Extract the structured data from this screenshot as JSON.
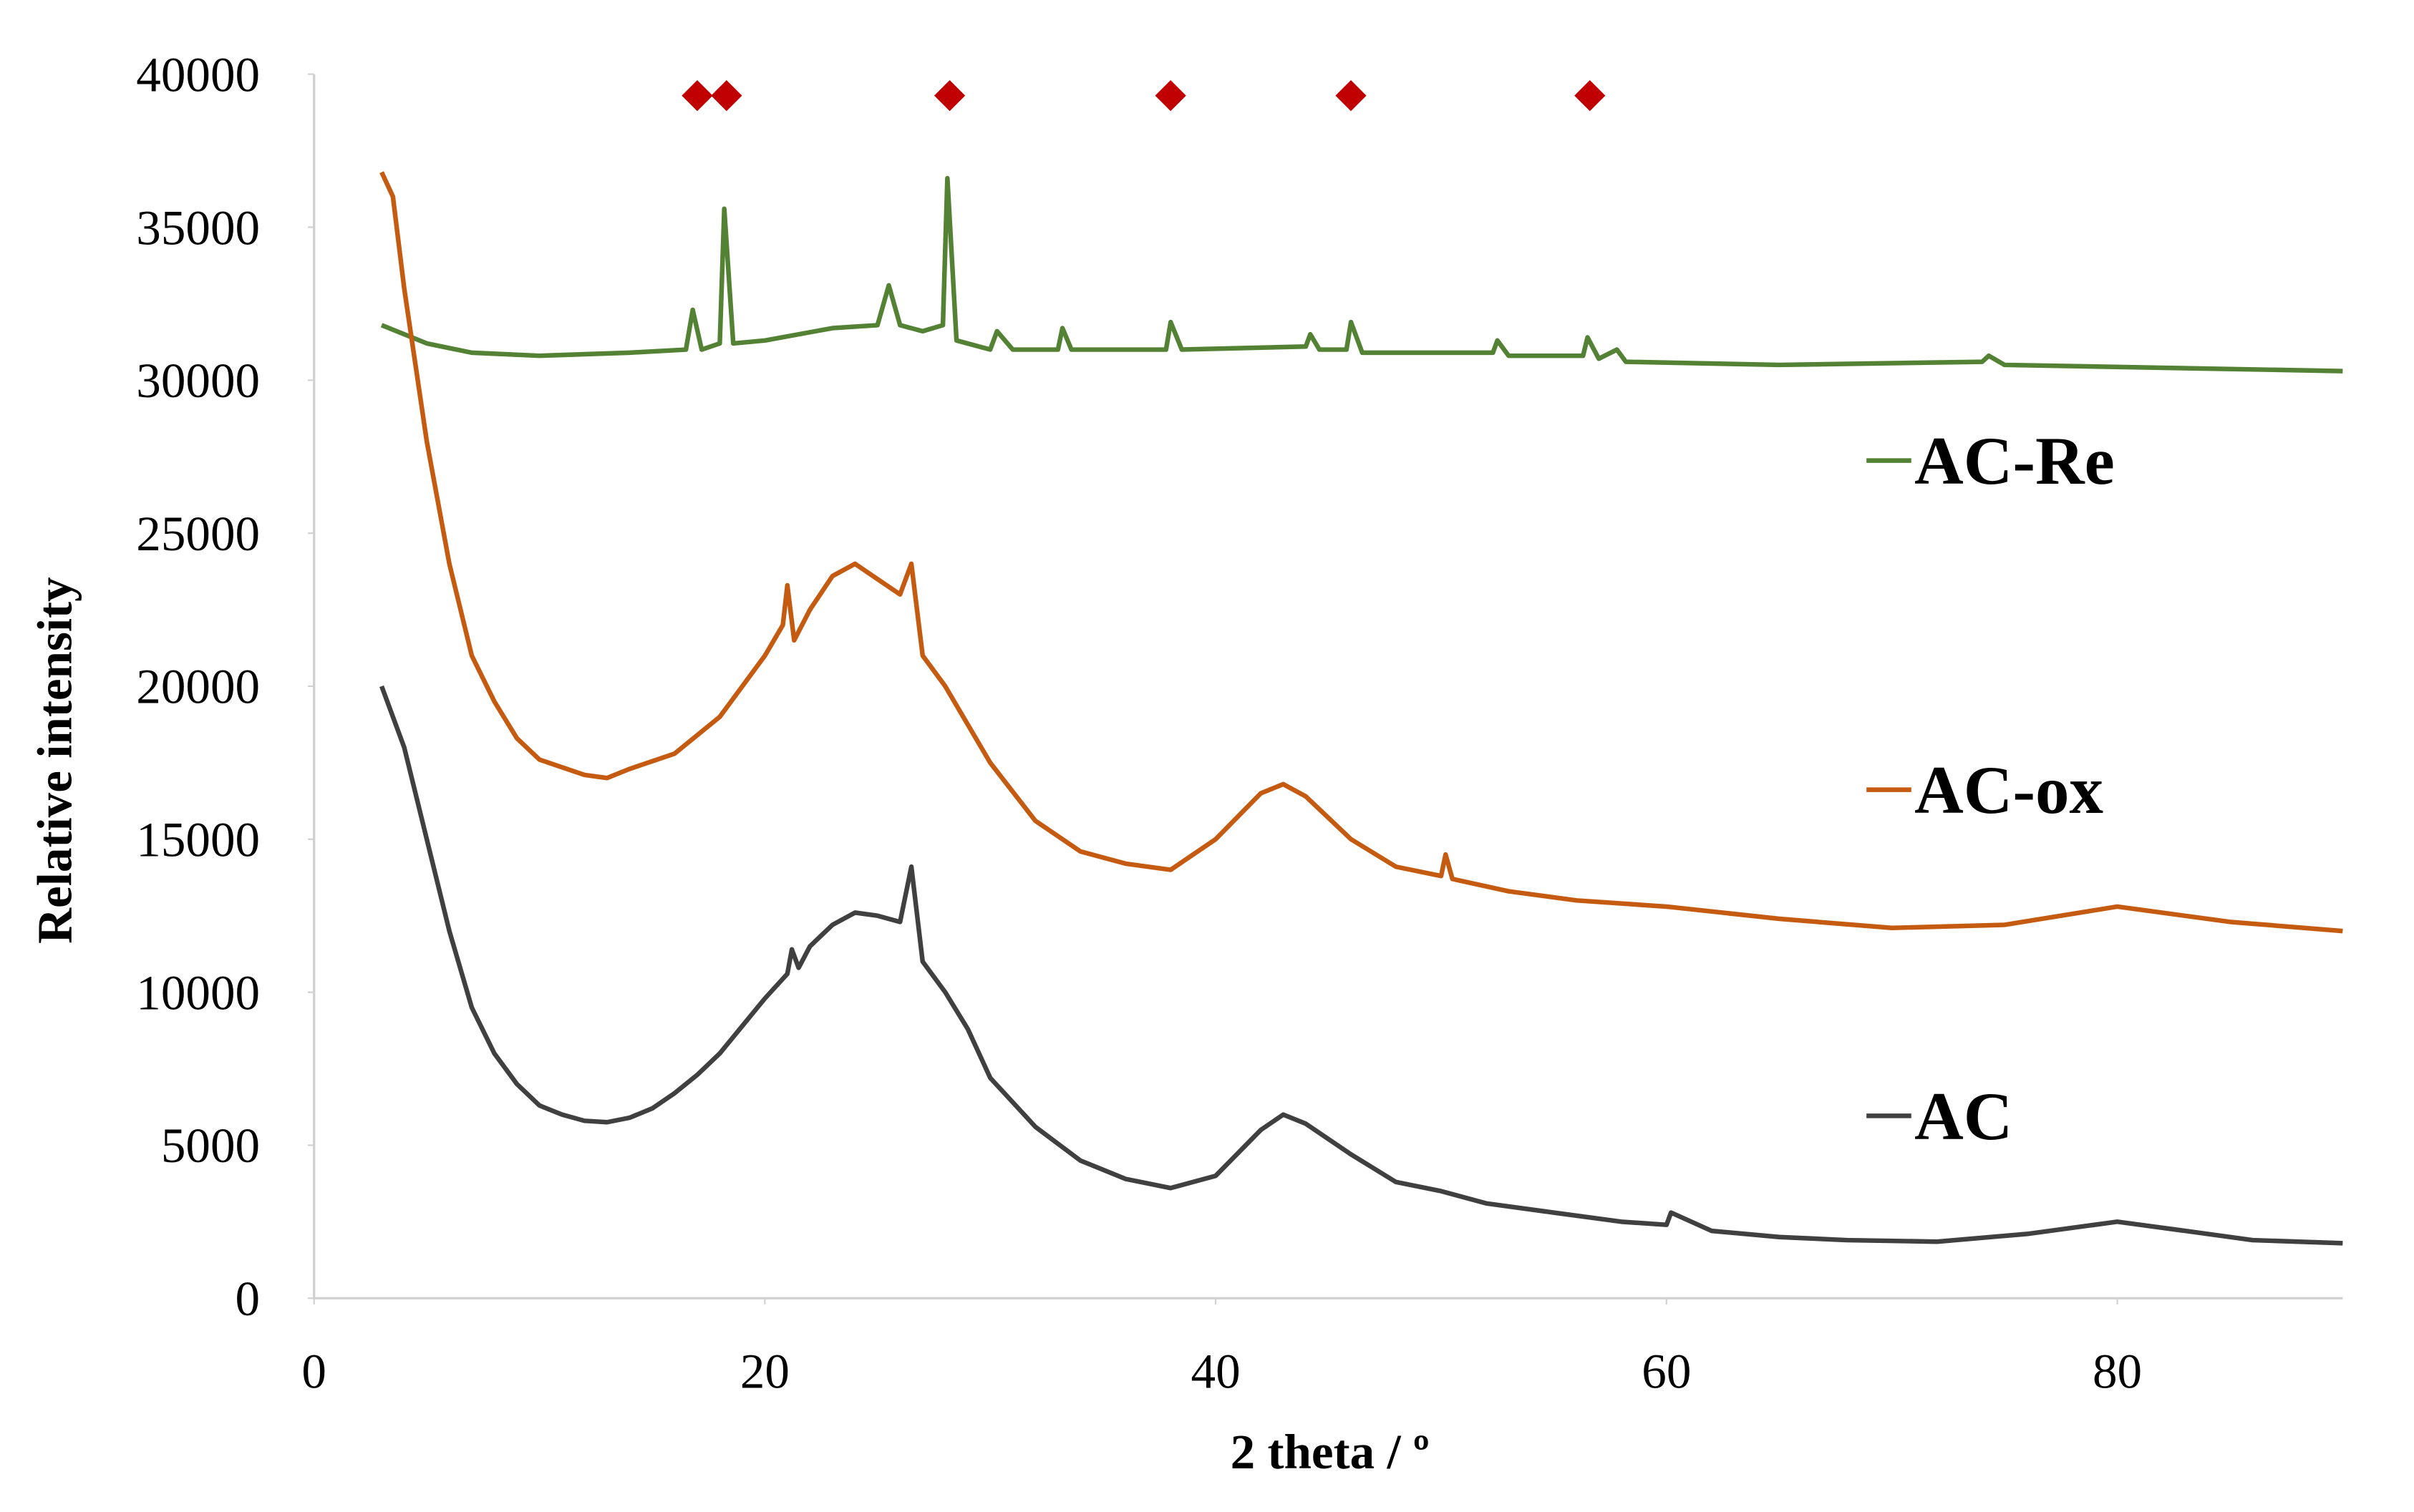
{
  "chart_data": {
    "type": "line",
    "x_label": "2 theta / º",
    "y_label": "Relative intensity",
    "xlim": [
      0,
      90
    ],
    "xticks": [
      0,
      20,
      40,
      60,
      80
    ],
    "ylim": [
      0,
      40000
    ],
    "yticks": [
      0,
      5000,
      10000,
      15000,
      20000,
      25000,
      30000,
      35000,
      40000
    ],
    "series": [
      {
        "name": "AC-Re",
        "color": "#548235",
        "x": [
          3,
          5,
          7,
          10,
          14,
          16.5,
          16.8,
          17.2,
          18,
          18.2,
          18.6,
          20,
          23,
          25,
          25.5,
          26,
          27,
          27.9,
          28.1,
          28.5,
          30,
          30.3,
          31,
          33,
          33.2,
          33.6,
          37.8,
          38,
          38.5,
          44,
          44.2,
          44.6,
          45.8,
          46,
          46.5,
          52.3,
          52.5,
          53,
          56.3,
          56.5,
          57,
          57.8,
          58.2,
          65,
          74,
          74.3,
          75,
          90
        ],
        "values": [
          31800,
          31200,
          30900,
          30800,
          30900,
          31000,
          32300,
          31000,
          31200,
          35600,
          31200,
          31300,
          31700,
          31800,
          33100,
          31800,
          31600,
          31800,
          36600,
          31300,
          31000,
          31600,
          31000,
          31000,
          31700,
          31000,
          31000,
          31900,
          31000,
          31100,
          31500,
          31000,
          31000,
          31900,
          30900,
          30900,
          31300,
          30800,
          30800,
          31400,
          30700,
          31000,
          30600,
          30500,
          30600,
          30800,
          30500,
          30300
        ]
      },
      {
        "name": "AC-ox",
        "color": "#c55a11",
        "x": [
          3,
          3.5,
          4,
          5,
          6,
          7,
          8,
          9,
          10,
          12,
          13,
          14,
          16,
          18,
          20,
          20.8,
          21,
          21.3,
          22,
          23,
          24,
          25,
          26,
          26.5,
          27,
          28,
          30,
          32,
          34,
          36,
          38,
          40,
          42,
          43,
          44,
          46,
          48,
          50,
          50.2,
          50.5,
          53,
          56,
          60,
          65,
          70,
          75,
          80,
          85,
          90
        ],
        "values": [
          36800,
          36000,
          33000,
          28000,
          24000,
          21000,
          19500,
          18300,
          17600,
          17100,
          17000,
          17300,
          17800,
          19000,
          21000,
          22000,
          23300,
          21500,
          22500,
          23600,
          24000,
          23500,
          23000,
          24000,
          21000,
          20000,
          17500,
          15600,
          14600,
          14200,
          14000,
          15000,
          16500,
          16800,
          16400,
          15000,
          14100,
          13800,
          14500,
          13700,
          13300,
          13000,
          12800,
          12400,
          12100,
          12200,
          12800,
          12300,
          12000
        ]
      },
      {
        "name": "AC",
        "color": "#404040",
        "x": [
          3,
          4,
          5,
          6,
          7,
          8,
          9,
          10,
          11,
          12,
          13,
          14,
          15,
          16,
          17,
          18,
          19,
          20,
          21,
          21.2,
          21.5,
          22,
          23,
          24,
          25,
          26,
          26.5,
          27,
          28,
          29,
          30,
          32,
          34,
          36,
          38,
          40,
          42,
          43,
          44,
          46,
          48,
          50,
          52,
          55,
          58,
          60,
          60.2,
          62,
          65,
          68,
          72,
          76,
          80,
          83,
          86,
          90
        ],
        "values": [
          20000,
          18000,
          15000,
          12000,
          9500,
          8000,
          7000,
          6300,
          6000,
          5800,
          5750,
          5900,
          6200,
          6700,
          7300,
          8000,
          8900,
          9800,
          10600,
          11400,
          10800,
          11500,
          12200,
          12600,
          12500,
          12300,
          14100,
          11000,
          10000,
          8800,
          7200,
          5600,
          4500,
          3900,
          3600,
          4000,
          5500,
          6000,
          5700,
          4700,
          3800,
          3500,
          3100,
          2800,
          2500,
          2400,
          2800,
          2200,
          2000,
          1900,
          1850,
          2100,
          2500,
          2200,
          1900,
          1800
        ]
      }
    ],
    "markers": {
      "color": "#c00000",
      "x": [
        17,
        18.3,
        28.2,
        38,
        46,
        56.6
      ],
      "values": [
        39300,
        39300,
        39300,
        39300,
        39300,
        39300
      ]
    }
  }
}
